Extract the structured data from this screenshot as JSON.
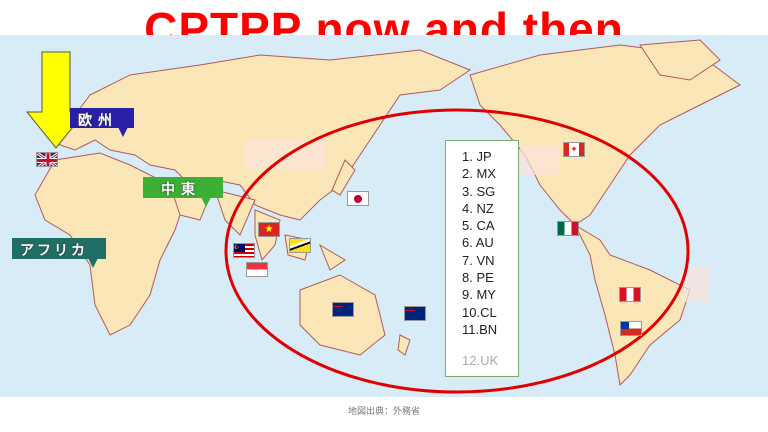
{
  "title": "CPTPP now and then",
  "members": [
    "1.  JP",
    "2.  MX",
    "3.  SG",
    "4.  NZ",
    "5.  CA",
    "6.  AU",
    "7.  VN",
    "8.  PE",
    "9.  MY",
    "10.CL",
    "11.BN"
  ],
  "candidate": "12.UK",
  "regions": {
    "europe": "欧州",
    "middle_east": "中東",
    "africa": "アフリカ"
  },
  "flags": [
    "uk",
    "vietnam",
    "malaysia",
    "singapore",
    "brunei",
    "japan",
    "australia",
    "new-zealand",
    "canada",
    "mexico",
    "peru",
    "chile"
  ],
  "source": "地図出典：外務省",
  "colors": {
    "title": "#ff0000",
    "ellipse": "#e00000",
    "arrow": "#ffff00",
    "ocean": "#d8ecf8",
    "land": "#fbe6b8",
    "europe_label": "#2a20a8",
    "middle_east_label": "#3cb034",
    "africa_label": "#1f6f66"
  }
}
